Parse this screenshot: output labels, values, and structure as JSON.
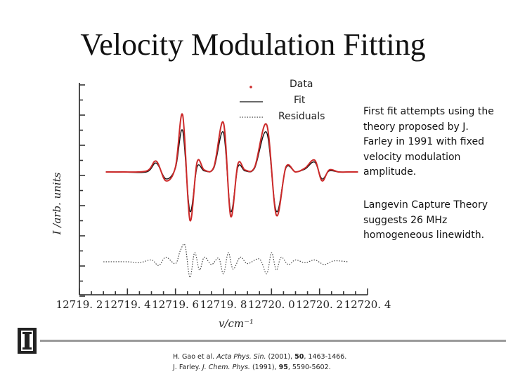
{
  "slide": {
    "title": "Velocity Modulation Fitting"
  },
  "legend": {
    "data": "Data",
    "fit": "Fit",
    "residuals": "Residuals"
  },
  "right_text": {
    "para1": "First fit attempts using the theory proposed by J. Farley in 1991 with fixed velocity modulation amplitude.",
    "para2": "Langevin Capture Theory suggests 26 MHz homogeneous linewidth."
  },
  "references": [
    {
      "authors": "H. Gao et al. ",
      "journal": "Acta Phys. Sin.",
      "year": " (2001), ",
      "volume": "50",
      "pages": ", 1463-1466."
    },
    {
      "authors": "J. Farley. ",
      "journal": "J. Chem. Phys.",
      "year": " (1991), ",
      "volume": "95",
      "pages": ", 5590-5602."
    }
  ],
  "colors": {
    "data": "#cc2a2a",
    "fit": "#111111",
    "residuals": "#444444"
  },
  "chart_data": {
    "type": "line",
    "xlabel": "v/cm⁻¹",
    "ylabel": "I /arb. units",
    "xlim": [
      12719.2,
      12720.4
    ],
    "x_ticks": [
      "12719. 2",
      "12719. 4",
      "12719. 6",
      "12719. 8",
      "12720. 0",
      "12720. 2",
      "12720. 4"
    ],
    "legend_position": "top-right",
    "series": [
      {
        "name": "Data",
        "style": "dots",
        "color": "#cc2a2a",
        "x": [
          12719.38,
          12719.48,
          12719.52,
          12719.56,
          12719.6,
          12719.63,
          12719.66,
          12719.69,
          12719.72,
          12719.76,
          12719.8,
          12719.83,
          12719.86,
          12719.89,
          12719.93,
          12719.98,
          12720.02,
          12720.06,
          12720.1,
          12720.14,
          12720.18,
          12720.21,
          12720.24,
          12720.28,
          12720.32
        ],
        "y": [
          0.0,
          0.01,
          0.11,
          -0.09,
          0.05,
          0.58,
          -0.49,
          0.1,
          0.02,
          0.05,
          0.5,
          -0.45,
          0.08,
          0.02,
          0.05,
          0.48,
          -0.44,
          0.05,
          0.0,
          0.04,
          0.12,
          -0.09,
          0.02,
          0.0,
          0.0
        ]
      },
      {
        "name": "Fit",
        "style": "line",
        "color": "#111111",
        "x": [
          12719.38,
          12719.48,
          12719.52,
          12719.56,
          12719.6,
          12719.63,
          12719.66,
          12719.69,
          12719.72,
          12719.76,
          12719.8,
          12719.83,
          12719.86,
          12719.89,
          12719.93,
          12719.98,
          12720.02,
          12720.06,
          12720.1,
          12720.14,
          12720.18,
          12720.21,
          12720.24,
          12720.28,
          12720.32
        ],
        "y": [
          0.0,
          0.0,
          0.09,
          -0.07,
          0.04,
          0.42,
          -0.4,
          0.05,
          0.01,
          0.04,
          0.4,
          -0.4,
          0.05,
          0.01,
          0.04,
          0.4,
          -0.4,
          0.04,
          0.0,
          0.03,
          0.1,
          -0.07,
          0.01,
          0.0,
          0.0
        ]
      },
      {
        "name": "Residuals",
        "style": "dotted",
        "color": "#444444",
        "x": [
          12719.3,
          12719.4,
          12719.45,
          12719.5,
          12719.53,
          12719.56,
          12719.6,
          12719.62,
          12719.64,
          12719.66,
          12719.68,
          12719.7,
          12719.72,
          12719.75,
          12719.78,
          12719.8,
          12719.82,
          12719.84,
          12719.87,
          12719.9,
          12719.95,
          12719.98,
          12720.0,
          12720.02,
          12720.04,
          12720.07,
          12720.1,
          12720.14,
          12720.18,
          12720.22,
          12720.26,
          12720.32
        ],
        "y": [
          0.0,
          0.0,
          -0.01,
          0.02,
          -0.04,
          0.05,
          -0.02,
          0.12,
          0.18,
          -0.17,
          0.1,
          -0.09,
          0.05,
          -0.03,
          0.04,
          -0.13,
          0.1,
          -0.08,
          0.05,
          -0.02,
          0.03,
          -0.13,
          0.1,
          -0.09,
          0.05,
          -0.03,
          0.02,
          -0.01,
          0.02,
          -0.03,
          0.01,
          0.0
        ]
      }
    ]
  }
}
